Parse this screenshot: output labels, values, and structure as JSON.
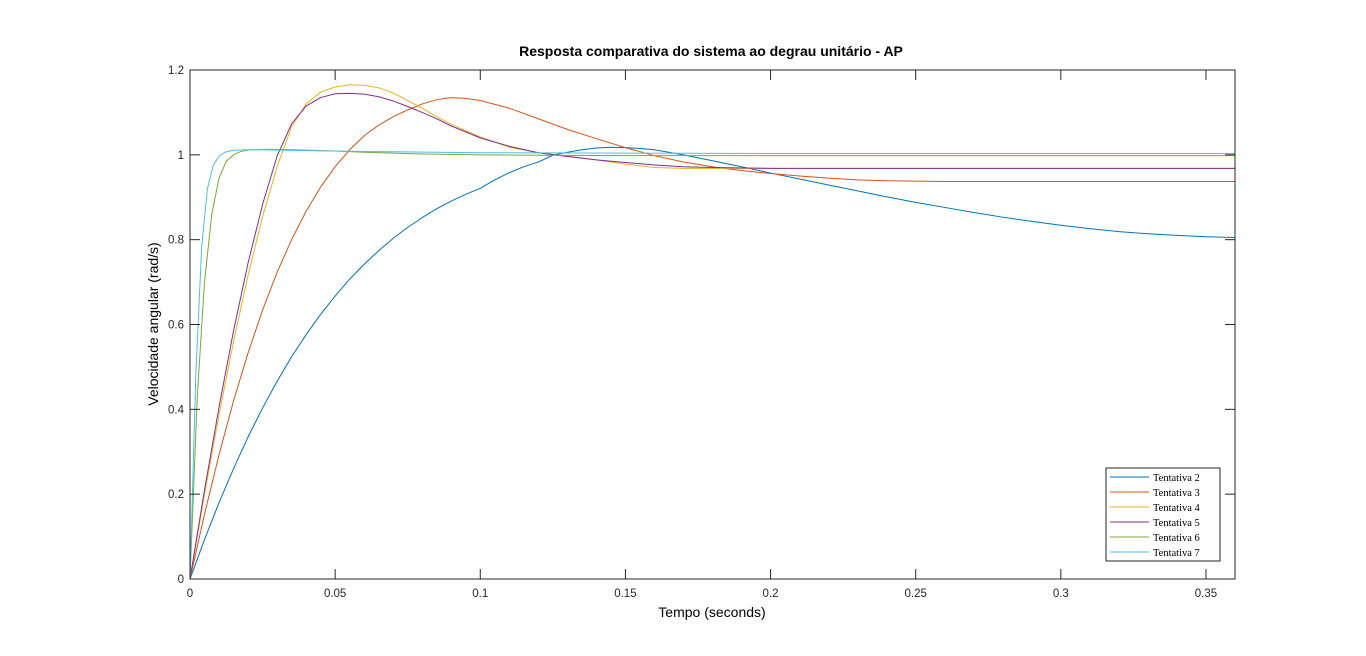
{
  "chart_data": {
    "type": "line",
    "title": "Resposta comparativa do sistema ao degrau unitário - AP",
    "xlabel": "Tempo (seconds)",
    "ylabel": "Velocidade angular (rad/s)",
    "xlim": [
      0,
      0.36
    ],
    "ylim": [
      0,
      1.2
    ],
    "xticks": [
      0,
      0.05,
      0.1,
      0.15,
      0.2,
      0.25,
      0.3,
      0.35
    ],
    "xtick_labels": [
      "0",
      "0.05",
      "0.1",
      "0.15",
      "0.2",
      "0.25",
      "0.3",
      "0.35"
    ],
    "yticks": [
      0,
      0.2,
      0.4,
      0.6,
      0.8,
      1,
      1.2
    ],
    "ytick_labels": [
      "0",
      "0.2",
      "0.4",
      "0.6",
      "0.8",
      "1",
      "1.2"
    ],
    "grid": false,
    "box": true,
    "legend_position": "bottom-right",
    "series": [
      {
        "name": "Tentativa 2",
        "color": "#0072bd",
        "x": [
          0,
          0.005,
          0.01,
          0.015,
          0.02,
          0.025,
          0.03,
          0.035,
          0.04,
          0.045,
          0.05,
          0.055,
          0.06,
          0.065,
          0.07,
          0.075,
          0.08,
          0.085,
          0.09,
          0.095,
          0.1,
          0.105,
          0.11,
          0.115,
          0.12,
          0.125,
          0.13,
          0.135,
          0.14,
          0.145,
          0.15,
          0.155,
          0.16,
          0.17,
          0.18,
          0.19,
          0.2,
          0.21,
          0.22,
          0.23,
          0.24,
          0.25,
          0.26,
          0.27,
          0.28,
          0.29,
          0.3,
          0.31,
          0.32,
          0.33,
          0.34,
          0.35,
          0.36
        ],
        "values": [
          0,
          0.093,
          0.18,
          0.26,
          0.335,
          0.403,
          0.466,
          0.524,
          0.576,
          0.624,
          0.667,
          0.707,
          0.742,
          0.774,
          0.803,
          0.829,
          0.852,
          0.873,
          0.891,
          0.907,
          0.921,
          0.941,
          0.958,
          0.972,
          0.983,
          0.999,
          1.006,
          1.012,
          1.016,
          1.018,
          1.017,
          1.015,
          1.012,
          1.0,
          0.986,
          0.972,
          0.957,
          0.943,
          0.929,
          0.915,
          0.901,
          0.888,
          0.876,
          0.864,
          0.853,
          0.843,
          0.834,
          0.826,
          0.819,
          0.814,
          0.81,
          0.807,
          0.805
        ]
      },
      {
        "name": "Tentativa 3",
        "color": "#d95319",
        "x": [
          0,
          0.005,
          0.01,
          0.015,
          0.02,
          0.025,
          0.03,
          0.035,
          0.04,
          0.045,
          0.05,
          0.055,
          0.06,
          0.065,
          0.07,
          0.075,
          0.08,
          0.085,
          0.09,
          0.095,
          0.1,
          0.11,
          0.12,
          0.13,
          0.14,
          0.15,
          0.16,
          0.17,
          0.18,
          0.19,
          0.2,
          0.21,
          0.22,
          0.23,
          0.24,
          0.25,
          0.26,
          0.28,
          0.3,
          0.32,
          0.34,
          0.36
        ],
        "values": [
          0,
          0.153,
          0.293,
          0.42,
          0.533,
          0.634,
          0.723,
          0.8,
          0.867,
          0.924,
          0.972,
          1.012,
          1.045,
          1.07,
          1.09,
          1.106,
          1.12,
          1.13,
          1.135,
          1.133,
          1.128,
          1.11,
          1.085,
          1.06,
          1.038,
          1.017,
          0.998,
          0.983,
          0.972,
          0.963,
          0.956,
          0.95,
          0.945,
          0.941,
          0.939,
          0.938,
          0.937,
          0.937,
          0.937,
          0.937,
          0.937,
          0.937
        ]
      },
      {
        "name": "Tentativa 4",
        "color": "#edb120",
        "x": [
          0,
          0.005,
          0.01,
          0.015,
          0.02,
          0.025,
          0.03,
          0.035,
          0.04,
          0.045,
          0.05,
          0.055,
          0.06,
          0.065,
          0.07,
          0.075,
          0.08,
          0.085,
          0.09,
          0.1,
          0.11,
          0.12,
          0.13,
          0.14,
          0.15,
          0.16,
          0.17,
          0.18,
          0.2,
          0.22,
          0.25,
          0.3,
          0.36
        ],
        "values": [
          0,
          0.2,
          0.387,
          0.56,
          0.716,
          0.854,
          0.972,
          1.066,
          1.12,
          1.148,
          1.16,
          1.165,
          1.164,
          1.158,
          1.146,
          1.128,
          1.11,
          1.09,
          1.072,
          1.042,
          1.018,
          1.005,
          0.997,
          0.988,
          0.978,
          0.97,
          0.968,
          0.968,
          0.968,
          0.968,
          0.968,
          0.968,
          0.968
        ]
      },
      {
        "name": "Tentativa 5",
        "color": "#7e2f8e",
        "x": [
          0,
          0.005,
          0.01,
          0.015,
          0.02,
          0.025,
          0.03,
          0.035,
          0.04,
          0.045,
          0.05,
          0.055,
          0.06,
          0.065,
          0.07,
          0.075,
          0.08,
          0.085,
          0.09,
          0.1,
          0.11,
          0.12,
          0.13,
          0.14,
          0.15,
          0.16,
          0.17,
          0.18,
          0.2,
          0.22,
          0.25,
          0.3,
          0.36
        ],
        "values": [
          0,
          0.21,
          0.405,
          0.585,
          0.745,
          0.883,
          0.997,
          1.073,
          1.115,
          1.135,
          1.144,
          1.145,
          1.143,
          1.137,
          1.127,
          1.114,
          1.1,
          1.085,
          1.068,
          1.04,
          1.02,
          1.005,
          0.996,
          0.988,
          0.982,
          0.976,
          0.972,
          0.97,
          0.968,
          0.968,
          0.968,
          0.968,
          0.968
        ]
      },
      {
        "name": "Tentativa 6",
        "color": "#77ac30",
        "x": [
          0,
          0.0025,
          0.005,
          0.0075,
          0.01,
          0.0125,
          0.015,
          0.0175,
          0.02,
          0.025,
          0.03,
          0.04,
          0.05,
          0.06,
          0.07,
          0.08,
          0.1,
          0.12,
          0.15,
          0.2,
          0.25,
          0.3,
          0.36
        ],
        "values": [
          0,
          0.43,
          0.7,
          0.86,
          0.945,
          0.985,
          1.0,
          1.008,
          1.011,
          1.013,
          1.013,
          1.011,
          1.009,
          1.006,
          1.004,
          1.002,
          1.0,
          0.999,
          0.998,
          0.998,
          0.998,
          0.998,
          0.998
        ]
      },
      {
        "name": "Tentativa 7",
        "color": "#4dbeee",
        "x": [
          0,
          0.002,
          0.004,
          0.006,
          0.008,
          0.01,
          0.012,
          0.014,
          0.016,
          0.02,
          0.025,
          0.03,
          0.04,
          0.06,
          0.1,
          0.15,
          0.2,
          0.25,
          0.3,
          0.36
        ],
        "values": [
          0,
          0.48,
          0.78,
          0.92,
          0.975,
          0.997,
          1.006,
          1.01,
          1.011,
          1.012,
          1.012,
          1.011,
          1.01,
          1.008,
          1.005,
          1.004,
          1.003,
          1.003,
          1.003,
          1.003
        ]
      }
    ]
  }
}
